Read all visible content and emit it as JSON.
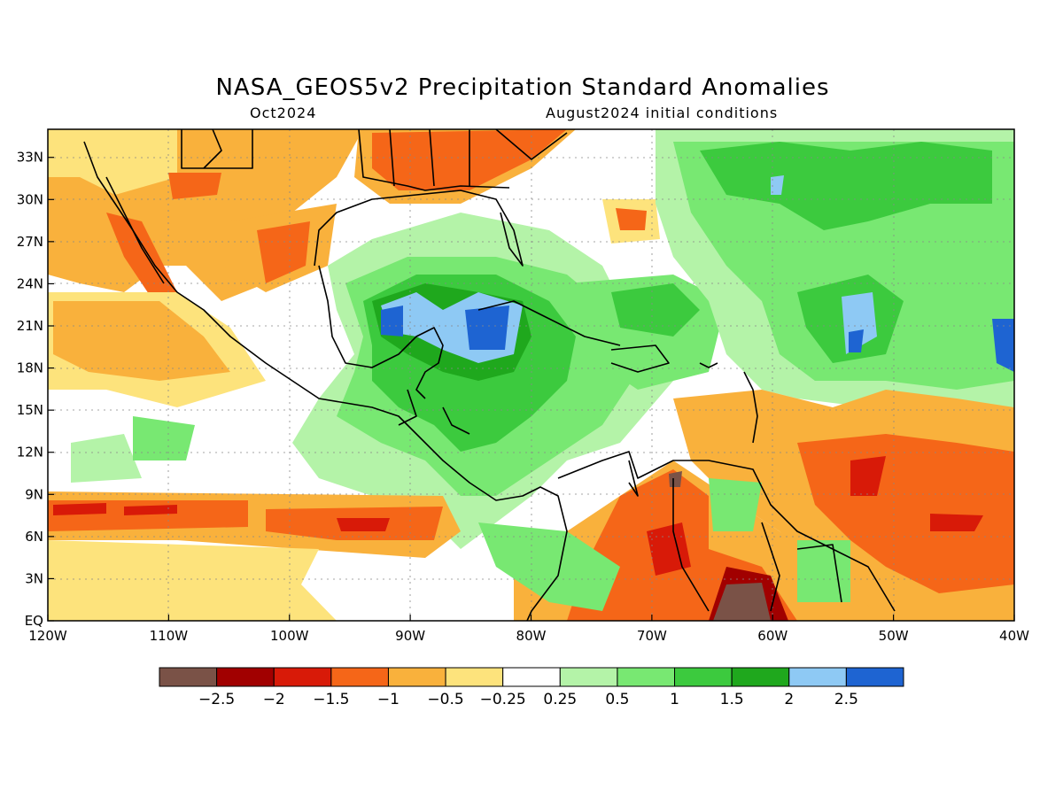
{
  "title": "NASA_GEOS5v2 Precipitation Standard Anomalies",
  "subtitle_left": "Oct2024",
  "subtitle_right": "August2024 initial conditions",
  "map": {
    "lon_range": [
      -120,
      -40
    ],
    "lat_range": [
      0,
      35
    ],
    "x_ticks": [
      "120W",
      "110W",
      "100W",
      "90W",
      "80W",
      "70W",
      "60W",
      "50W",
      "40W"
    ],
    "y_ticks": [
      "EQ",
      "3N",
      "6N",
      "9N",
      "12N",
      "15N",
      "18N",
      "21N",
      "24N",
      "27N",
      "30N",
      "33N"
    ],
    "grid": true
  },
  "colorbar": {
    "colors": [
      "#7a5247",
      "#a10000",
      "#d81a08",
      "#f56618",
      "#f9b13c",
      "#fde37c",
      "#ffffff",
      "#b4f3a8",
      "#78e872",
      "#3cca3e",
      "#1fa81d",
      "#8ec9f4",
      "#1e64d2"
    ],
    "labels": [
      "−2.5",
      "−2",
      "−1.5",
      "−1",
      "−0.5",
      "−0.25",
      "0.25",
      "0.5",
      "1",
      "1.5",
      "2",
      "2.5"
    ]
  }
}
